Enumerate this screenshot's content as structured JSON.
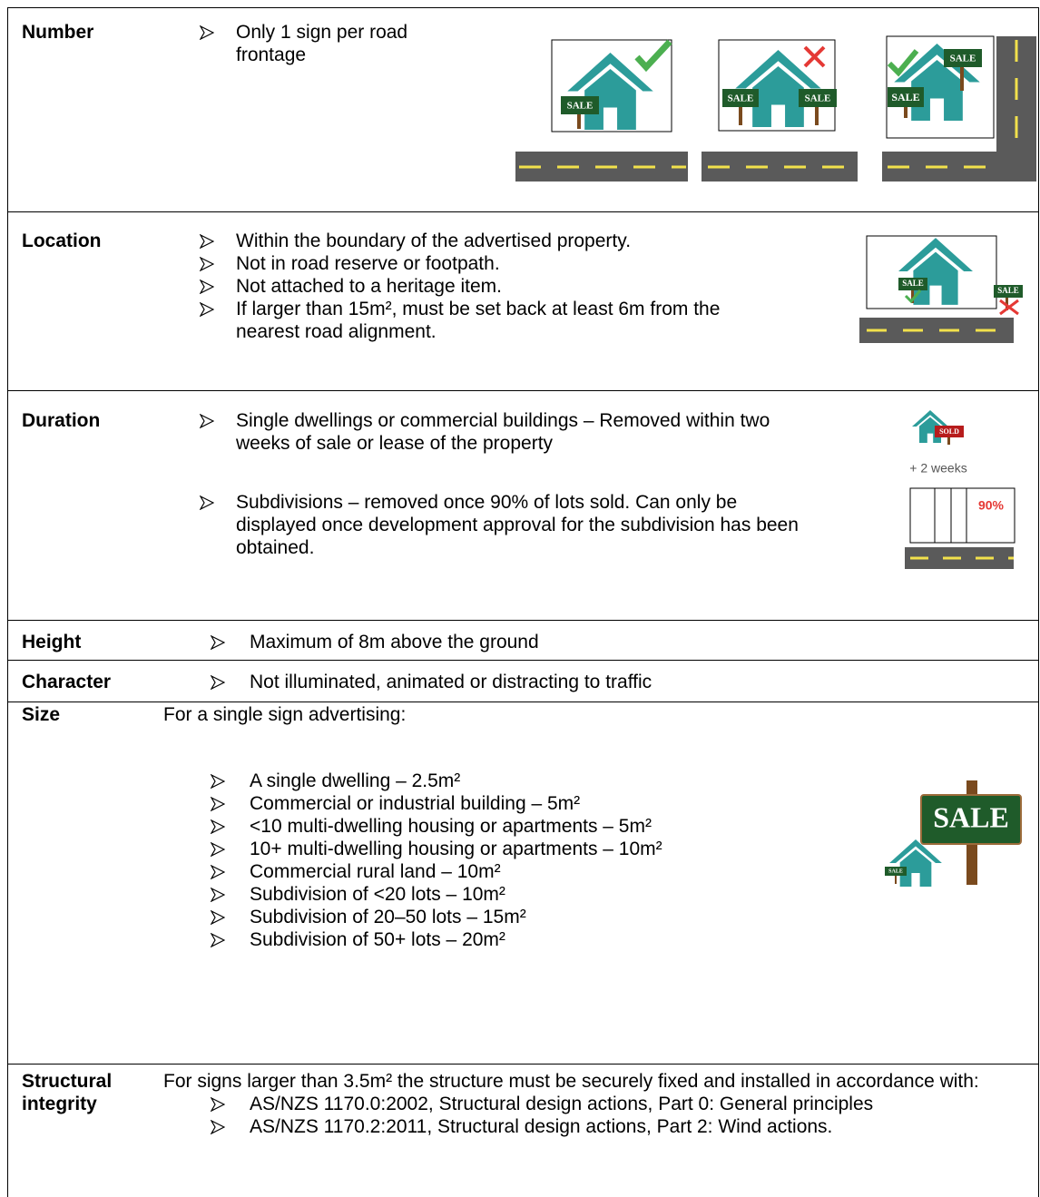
{
  "rows": [
    {
      "label": "Number",
      "bullets": [
        "Only 1 sign per road frontage"
      ]
    },
    {
      "label": "Location",
      "bullets": [
        "Within the boundary of the advertised property.",
        "Not in road reserve or footpath.",
        "Not attached to a heritage item.",
        "If larger than 15m², must be set back at least 6m from the nearest road alignment."
      ]
    },
    {
      "label": "Duration",
      "bullets": [
        "Single dwellings or commercial buildings – Removed within two weeks of sale or lease of the property",
        "Subdivisions – removed once 90% of lots sold. Can only be displayed once development approval for the subdivision has been obtained."
      ]
    },
    {
      "label": "Height",
      "bullets": [
        "Maximum of 8m above the ground"
      ]
    },
    {
      "label": "Character",
      "bullets": [
        "Not illuminated, animated or distracting to traffic"
      ]
    },
    {
      "label": "Size",
      "intro": "For a single sign advertising:",
      "bullets": [
        "A single dwelling – 2.5m²",
        "Commercial or industrial building – 5m²",
        "<10 multi-dwelling housing or apartments – 5m²",
        "10+ multi-dwelling housing or apartments – 10m²",
        "Commercial rural land – 10m²",
        "Subdivision of <20 lots – 10m²",
        "Subdivision of 20–50 lots – 15m²",
        "Subdivision of 50+ lots – 20m²"
      ]
    },
    {
      "label": "Structural integrity",
      "intro": "For signs larger than 3.5m² the structure must be securely fixed and installed in accordance with:",
      "bullets": [
        "AS/NZS 1170.0:2002, Structural design actions, Part 0: General principles",
        "AS/NZS 1170.2:2011, Structural design actions, Part 2: Wind actions."
      ]
    }
  ],
  "icons": {
    "sale": "SALE",
    "sold": "SOLD",
    "weeks": "+ 2 weeks",
    "percent": "90%"
  }
}
